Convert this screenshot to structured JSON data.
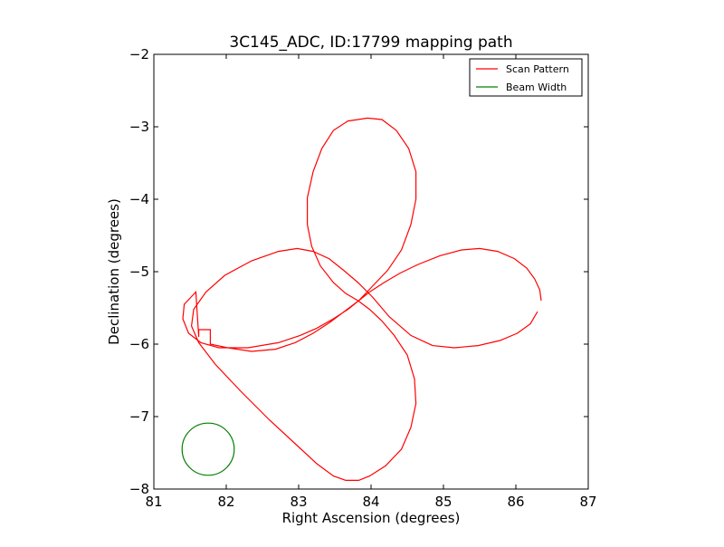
{
  "chart_data": {
    "type": "line",
    "title": "3C145_ADC, ID:17799 mapping path",
    "xlabel": "Right Ascension (degrees)",
    "ylabel": "Declination (degrees)",
    "xlim": [
      81,
      87
    ],
    "ylim": [
      -8,
      -2
    ],
    "xticks": [
      81,
      82,
      83,
      84,
      85,
      86,
      87
    ],
    "yticks": [
      -8,
      -7,
      -6,
      -5,
      -4,
      -3,
      -2
    ],
    "grid": false,
    "legend_position": "top-right",
    "series": [
      {
        "name": "Scan Pattern",
        "color": "#ff0000",
        "x": [
          86.35,
          86.33,
          86.26,
          86.15,
          85.98,
          85.75,
          85.5,
          85.25,
          84.95,
          84.65,
          84.4,
          84.18,
          83.98,
          83.83,
          83.68,
          83.48,
          83.25,
          83.02,
          82.72,
          82.3,
          81.9,
          81.65,
          81.48,
          81.4,
          81.42,
          81.58,
          81.62,
          81.62,
          81.78,
          81.78,
          82.02,
          82.35,
          82.68,
          82.95,
          83.2,
          83.43,
          83.63,
          83.83,
          84.02,
          84.23,
          84.42,
          84.55,
          84.62,
          84.62,
          84.52,
          84.35,
          84.15,
          83.95,
          83.82,
          83.68,
          83.48,
          83.32,
          83.2,
          83.12,
          83.12,
          83.18,
          83.3,
          83.48,
          83.65,
          83.82,
          83.98,
          84.15,
          84.32,
          84.5,
          84.6,
          84.62,
          84.55,
          84.42,
          84.2,
          83.98,
          83.83,
          83.65,
          83.48,
          83.25,
          82.98,
          82.6,
          82.2,
          81.85,
          81.62,
          81.52,
          81.55,
          81.72,
          81.98,
          82.35,
          82.72,
          82.98,
          83.2,
          83.42,
          83.62,
          83.82,
          84.02,
          84.25,
          84.55,
          84.85,
          85.15,
          85.48,
          85.78,
          86.02,
          86.2,
          86.3
        ],
        "y": [
          -5.4,
          -5.25,
          -5.1,
          -4.95,
          -4.82,
          -4.72,
          -4.68,
          -4.7,
          -4.78,
          -4.9,
          -5.02,
          -5.15,
          -5.28,
          -5.4,
          -5.52,
          -5.65,
          -5.78,
          -5.88,
          -5.98,
          -6.05,
          -6.05,
          -5.98,
          -5.85,
          -5.65,
          -5.45,
          -5.28,
          -5.9,
          -5.8,
          -5.8,
          -6.0,
          -6.05,
          -6.1,
          -6.07,
          -5.98,
          -5.85,
          -5.7,
          -5.55,
          -5.4,
          -5.2,
          -4.98,
          -4.7,
          -4.35,
          -4.0,
          -3.62,
          -3.3,
          -3.05,
          -2.9,
          -2.88,
          -2.9,
          -2.92,
          -3.05,
          -3.3,
          -3.62,
          -3.98,
          -4.35,
          -4.65,
          -4.92,
          -5.15,
          -5.3,
          -5.4,
          -5.52,
          -5.68,
          -5.88,
          -6.15,
          -6.48,
          -6.82,
          -7.15,
          -7.45,
          -7.68,
          -7.82,
          -7.88,
          -7.88,
          -7.82,
          -7.65,
          -7.4,
          -7.05,
          -6.65,
          -6.28,
          -5.98,
          -5.75,
          -5.52,
          -5.28,
          -5.05,
          -4.85,
          -4.72,
          -4.68,
          -4.72,
          -4.82,
          -4.98,
          -5.15,
          -5.35,
          -5.62,
          -5.88,
          -6.02,
          -6.05,
          -6.02,
          -5.95,
          -5.85,
          -5.72,
          -5.55
        ]
      },
      {
        "name": "Beam Width",
        "color": "#008000",
        "shape": "circle",
        "center": [
          81.75,
          -7.45
        ],
        "radius": 0.36
      }
    ]
  }
}
